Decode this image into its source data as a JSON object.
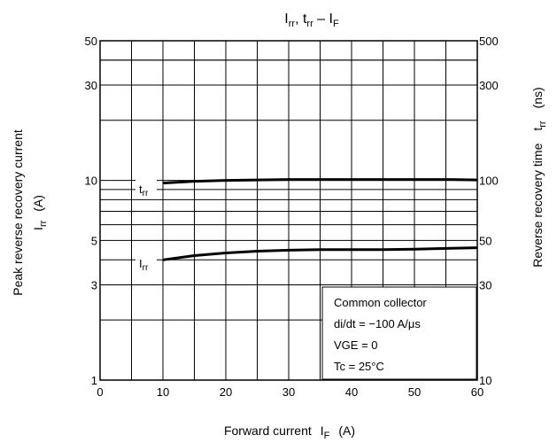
{
  "chart_data": {
    "type": "line",
    "title": "Irr, trr – IF",
    "title_parts": {
      "a": "I",
      "a_sub": "rr",
      "sep": ", ",
      "b": "t",
      "b_sub": "rr",
      "dash": " – ",
      "c": "I",
      "c_sub": "F"
    },
    "xlabel": {
      "text": "Forward current",
      "sym": "I",
      "sym_sub": "F",
      "unit": "(A)"
    },
    "ylabel_left": {
      "line1": "Peak reverse recovery current",
      "sym": "I",
      "sym_sub": "rr",
      "unit": "(A)"
    },
    "ylabel_right": {
      "text": "Reverse recovery time",
      "sym": "t",
      "sym_sub": "rr",
      "unit": "(ns)"
    },
    "xlim": [
      0,
      60
    ],
    "x_ticks": [
      "0",
      "10",
      "20",
      "30",
      "40",
      "50",
      "60"
    ],
    "y_left": {
      "scale": "log",
      "lim": [
        1,
        50
      ],
      "tick_labels": [
        {
          "value": 1,
          "label": "1"
        },
        {
          "value": 3,
          "label": "3"
        },
        {
          "value": 5,
          "label": "5"
        },
        {
          "value": 10,
          "label": "10"
        },
        {
          "value": 30,
          "label": "30"
        },
        {
          "value": 50,
          "label": "50"
        }
      ]
    },
    "y_right": {
      "scale": "log",
      "lim": [
        10,
        500
      ],
      "tick_labels": [
        {
          "value": 10,
          "label": "10"
        },
        {
          "value": 30,
          "label": "30"
        },
        {
          "value": 50,
          "label": "50"
        },
        {
          "value": 100,
          "label": "100"
        },
        {
          "value": 300,
          "label": "300"
        },
        {
          "value": 500,
          "label": "500"
        }
      ]
    },
    "grid": true,
    "series": [
      {
        "name": "trr",
        "label": {
          "sym": "t",
          "sub": "rr"
        },
        "axis": "right",
        "x": [
          10,
          15,
          20,
          25,
          30,
          35,
          40,
          45,
          50,
          55,
          60
        ],
        "y": [
          97,
          99,
          100,
          100.5,
          101,
          101,
          101,
          101,
          101,
          101,
          100.5
        ]
      },
      {
        "name": "Irr",
        "label": {
          "sym": "I",
          "sub": "rr"
        },
        "axis": "left",
        "x": [
          10,
          15,
          20,
          25,
          30,
          35,
          40,
          45,
          50,
          55,
          60
        ],
        "y": [
          4.0,
          4.2,
          4.33,
          4.42,
          4.47,
          4.5,
          4.5,
          4.5,
          4.52,
          4.56,
          4.6
        ]
      }
    ],
    "annotation": {
      "line1": "Common collector",
      "line2": "di/dt = −100 A/μs",
      "line3": "VGE = 0",
      "line4": "Tc = 25°C"
    }
  }
}
